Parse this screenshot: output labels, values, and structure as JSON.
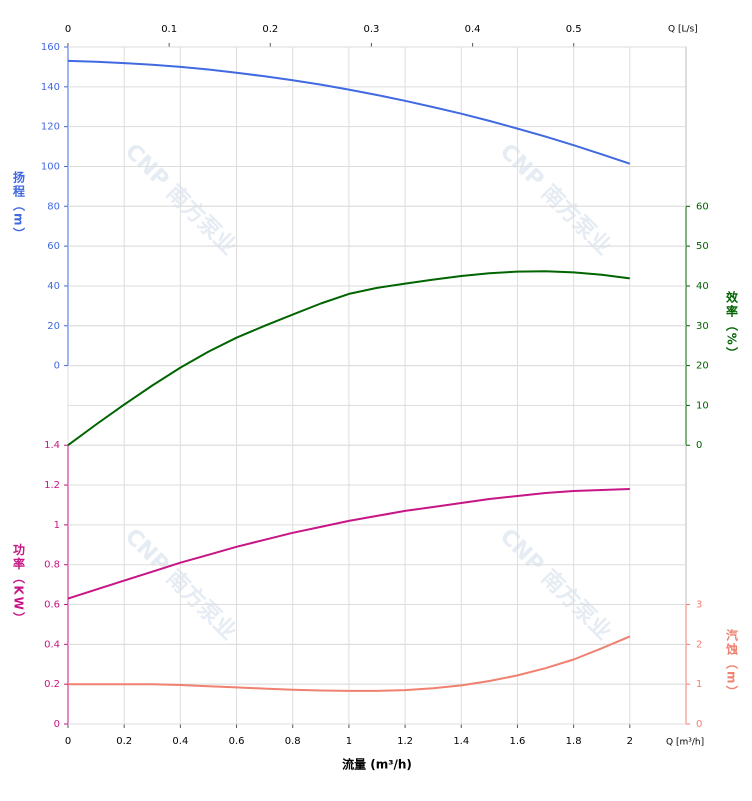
{
  "chart_data": {
    "type": "line",
    "xlabel": "流量 (m³/h)",
    "xunit": "Q [m³/h]",
    "x2unit": "Q [L/s]",
    "watermark": "CNP 南方泵业",
    "grid": true,
    "xlim": [
      0,
      2.2
    ],
    "xticks": [
      0,
      0.2,
      0.4,
      0.6,
      0.8,
      1,
      1.2,
      1.4,
      1.6,
      1.8,
      2
    ],
    "x2lim": [
      0,
      0.611
    ],
    "x2ticks": [
      0,
      0.1,
      0.2,
      0.3,
      0.4,
      0.5
    ],
    "axes": [
      {
        "label": "扬程（m）",
        "side": "left",
        "color": "#4169e1",
        "ylim": [
          -180,
          160
        ],
        "yticks": [
          0,
          20,
          40,
          60,
          80,
          100,
          120,
          140,
          160
        ]
      },
      {
        "label": "效率（%）",
        "side": "right",
        "color": "#006400",
        "ylim": [
          -70,
          100
        ],
        "yticks": [
          0,
          10,
          20,
          30,
          40,
          50,
          60
        ]
      },
      {
        "label": "功率（KW）",
        "side": "left",
        "color": "#c71585",
        "ylim": [
          0,
          3.4
        ],
        "yticks": [
          0,
          0.2,
          0.4,
          0.6,
          0.8,
          1,
          1.2,
          1.4
        ]
      },
      {
        "label": "汽蚀（m）",
        "side": "right",
        "color": "#f08070",
        "ylim": [
          0,
          17
        ],
        "yticks": [
          0,
          1,
          2,
          3
        ]
      }
    ],
    "x": [
      0,
      0.1,
      0.2,
      0.3,
      0.4,
      0.5,
      0.6,
      0.7,
      0.8,
      0.9,
      1,
      1.1,
      1.2,
      1.3,
      1.4,
      1.5,
      1.6,
      1.7,
      1.8,
      1.9,
      2
    ],
    "series": [
      {
        "axis": 0,
        "color": "#4169e1",
        "values": [
          153,
          152.6,
          151.9,
          151.1,
          150,
          148.7,
          147.1,
          145.3,
          143.3,
          141.1,
          138.6,
          135.9,
          133,
          129.8,
          126.5,
          122.9,
          119,
          115,
          110.7,
          106.1,
          101.4
        ]
      },
      {
        "axis": 1,
        "color": "#006400",
        "values": [
          0,
          5.2,
          10.2,
          15,
          19.5,
          23.5,
          27,
          30,
          32.8,
          35.6,
          38,
          39.5,
          40.6,
          41.6,
          42.5,
          43.2,
          43.6,
          43.7,
          43.4,
          42.8,
          41.9
        ]
      },
      {
        "axis": 2,
        "color": "#c71585",
        "values": [
          0.63,
          0.675,
          0.72,
          0.765,
          0.81,
          0.85,
          0.89,
          0.925,
          0.96,
          0.99,
          1.02,
          1.045,
          1.07,
          1.09,
          1.11,
          1.13,
          1.145,
          1.16,
          1.17,
          1.175,
          1.18
        ]
      },
      {
        "axis": 3,
        "color": "#f08070",
        "values": [
          1,
          1,
          1,
          1,
          0.98,
          0.95,
          0.92,
          0.89,
          0.86,
          0.84,
          0.83,
          0.83,
          0.85,
          0.9,
          0.97,
          1.08,
          1.22,
          1.4,
          1.62,
          1.9,
          2.2
        ]
      }
    ]
  }
}
